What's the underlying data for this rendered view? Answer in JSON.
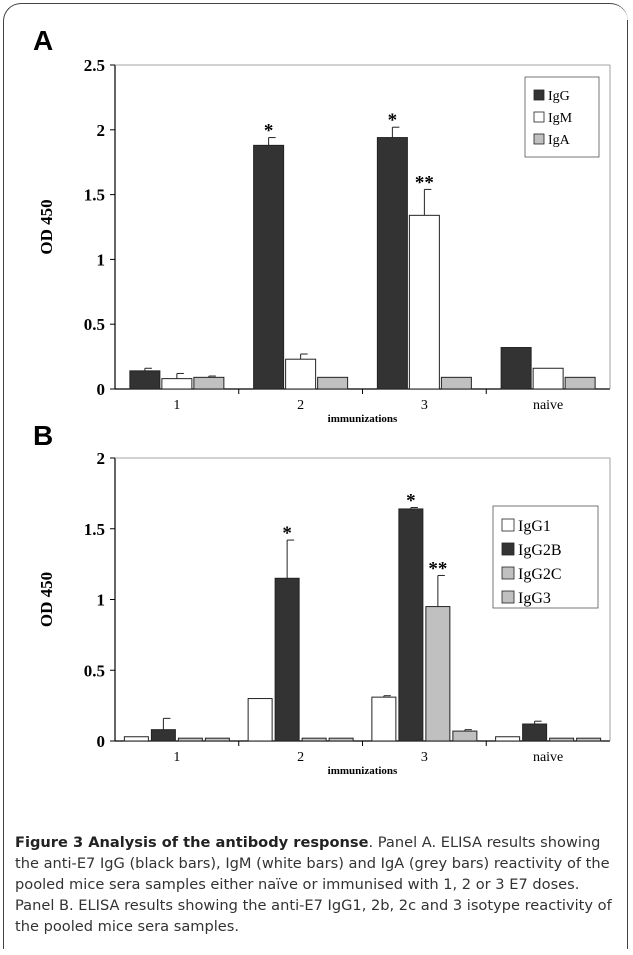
{
  "panels": {
    "a_letter": "A",
    "b_letter": "B"
  },
  "chart_data": [
    {
      "type": "bar",
      "panel": "A",
      "categories": [
        "1",
        "2",
        "3",
        "naive"
      ],
      "series": [
        {
          "name": "IgG",
          "color": "#333333",
          "values": [
            0.14,
            1.88,
            1.94,
            0.32
          ],
          "errors": [
            0.02,
            0.06,
            0.08,
            0
          ]
        },
        {
          "name": "IgM",
          "color": "#ffffff",
          "values": [
            0.08,
            0.23,
            1.34,
            0.16
          ],
          "errors": [
            0.04,
            0.04,
            0.2,
            0
          ]
        },
        {
          "name": "IgA",
          "color": "#c0c0c0",
          "values": [
            0.09,
            0.09,
            0.09,
            0.09
          ],
          "errors": [
            0.01,
            0,
            0,
            0
          ]
        }
      ],
      "annotations": [
        {
          "category": "2",
          "series": "IgG",
          "text": "*"
        },
        {
          "category": "3",
          "series": "IgG",
          "text": "*"
        },
        {
          "category": "3",
          "series": "IgM",
          "text": "**"
        }
      ],
      "xlabel": "immunizations",
      "ylabel": "OD 450",
      "ylim": [
        0,
        2.5
      ],
      "yticks": [
        "0",
        "0.5",
        "1",
        "1.5",
        "2",
        "2.5"
      ],
      "legend": "top-right"
    },
    {
      "type": "bar",
      "panel": "B",
      "categories": [
        "1",
        "2",
        "3",
        "naive"
      ],
      "series": [
        {
          "name": "IgG1",
          "color": "#ffffff",
          "values": [
            0.03,
            0.3,
            0.31,
            0.03
          ],
          "errors": [
            0,
            0,
            0.01,
            0
          ]
        },
        {
          "name": "IgG2B",
          "color": "#333333",
          "values": [
            0.08,
            1.15,
            1.64,
            0.12
          ],
          "errors": [
            0.08,
            0.27,
            0.01,
            0.02
          ]
        },
        {
          "name": "IgG2C",
          "color": "#c0c0c0",
          "values": [
            0.02,
            0.02,
            0.95,
            0.02
          ],
          "errors": [
            0,
            0,
            0.22,
            0
          ]
        },
        {
          "name": "IgG3",
          "color": "#c0c0c0",
          "values": [
            0.02,
            0.02,
            0.07,
            0.02
          ],
          "errors": [
            0,
            0,
            0.01,
            0
          ]
        }
      ],
      "annotations": [
        {
          "category": "2",
          "series": "IgG2B",
          "text": "*"
        },
        {
          "category": "3",
          "series": "IgG2B",
          "text": "*"
        },
        {
          "category": "3",
          "series": "IgG2C",
          "text": "**"
        }
      ],
      "xlabel": "immunizations",
      "ylabel": "OD 450",
      "ylim": [
        0,
        2
      ],
      "yticks": [
        "0",
        "0.5",
        "1",
        "1.5",
        "2"
      ],
      "legend": "top-right"
    }
  ],
  "caption": {
    "title": "Figure 3 Analysis of the antibody response",
    "body": ". Panel A. ELISA results showing the anti-E7 IgG (black bars), IgM (white bars) and IgA (grey bars) reactivity of the pooled mice sera samples either naïve or immunised with 1, 2 or 3 E7 doses. Panel B. ELISA results showing the anti-E7 IgG1, 2b, 2c and 3 isotype reactivity of the pooled mice sera samples."
  }
}
